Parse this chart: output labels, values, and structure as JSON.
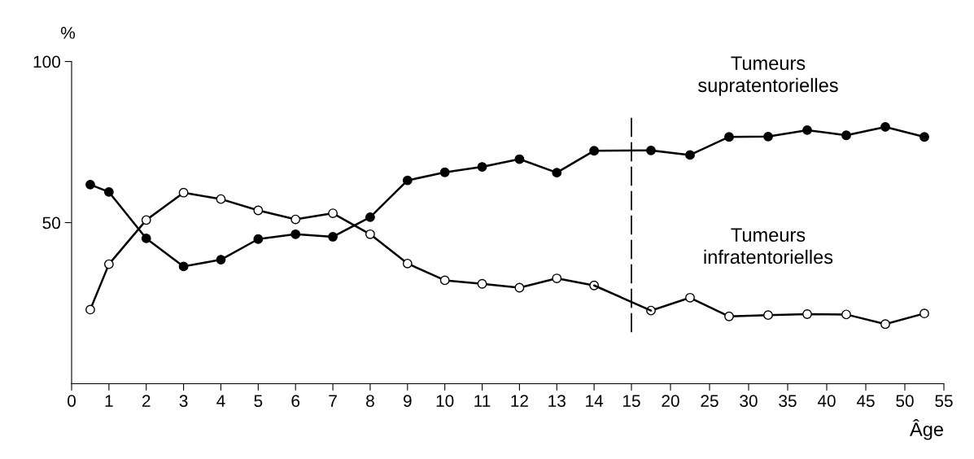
{
  "chart_data": [
    {
      "type": "line",
      "ylabel": "%",
      "x": [
        0.5,
        1,
        2,
        3,
        4,
        5,
        6,
        7,
        8,
        9,
        10,
        11,
        12,
        13,
        14
      ],
      "series": [
        {
          "color": "#000000",
          "marker": "circle",
          "values": [
            61.8,
            59.5,
            45.1,
            36.4,
            38.5,
            44.9,
            46.4,
            45.6,
            51.7,
            63.1,
            65.6,
            67.3,
            69.7,
            65.5,
            72.3
          ]
        },
        {
          "color": "#000000",
          "marker": "circle_open",
          "values": [
            23.0,
            37.1,
            50.8,
            59.3,
            57.3,
            53.8,
            51.0,
            52.9,
            46.4,
            37.3,
            32.1,
            31.0,
            29.8,
            32.7,
            30.5
          ]
        }
      ],
      "xlim": [
        0,
        15
      ],
      "xticks": [
        0,
        1,
        2,
        3,
        4,
        5,
        6,
        7,
        8,
        9,
        10,
        11,
        12,
        13,
        14,
        15
      ],
      "ylim": [
        0,
        100
      ],
      "yticks": [
        50,
        100
      ],
      "line_style": "solid",
      "grid": false,
      "legend": false
    },
    {
      "type": "line",
      "xlabel": "Âge",
      "x": [
        17.5,
        22.5,
        27.5,
        32.5,
        37.5,
        42.5,
        47.5,
        52.5
      ],
      "series": [
        {
          "name": "Tumeurs\nsupratentorielles",
          "color": "#000000",
          "marker": "circle",
          "values": [
            72.4,
            71.0,
            76.6,
            76.7,
            78.7,
            77.1,
            79.7,
            76.6
          ]
        },
        {
          "name": "Tumeurs\ninfratentorielles",
          "color": "#000000",
          "marker": "circle_open",
          "values": [
            22.7,
            26.7,
            20.9,
            21.3,
            21.6,
            21.5,
            18.5,
            21.8
          ]
        }
      ],
      "xlim": [
        15,
        55
      ],
      "xticks": [
        20,
        25,
        30,
        35,
        40,
        45,
        50,
        55
      ],
      "ylim": [
        0,
        100
      ],
      "tick_labels": "x",
      "ref_lines": [
        {
          "axis": "x",
          "value": 15,
          "line_style": "dashed"
        }
      ],
      "line_style": "solid",
      "grid": false,
      "legend": false
    }
  ]
}
